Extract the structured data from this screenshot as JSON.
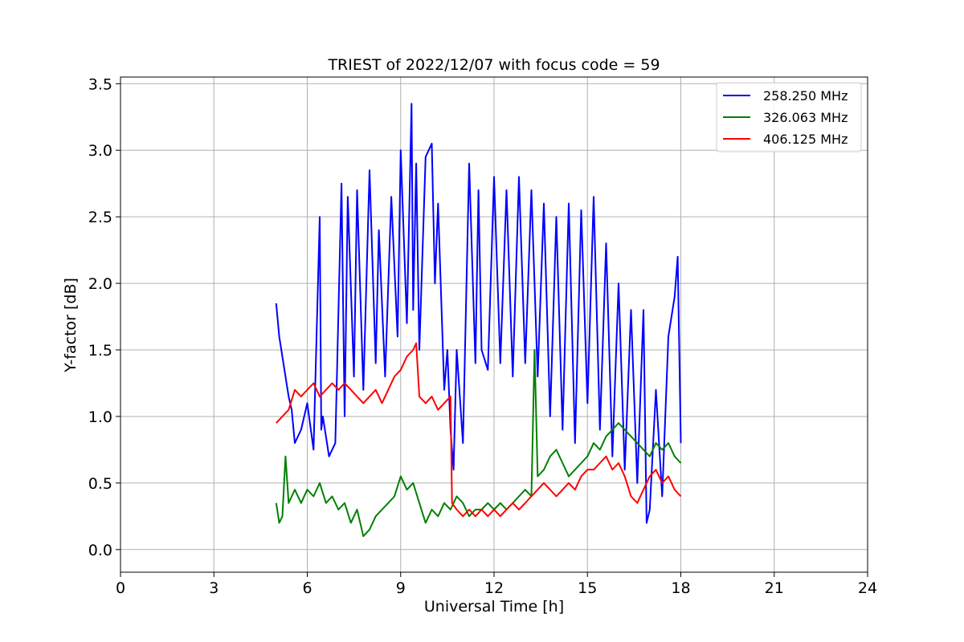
{
  "chart_data": {
    "type": "line",
    "title": "TRIEST of 2022/12/07 with focus code = 59",
    "xlabel": "Universal Time [h]",
    "ylabel": "Y-factor [dB]",
    "xlim": [
      0,
      24
    ],
    "ylim": [
      -0.17,
      3.55
    ],
    "xticks": [
      0,
      3,
      6,
      9,
      12,
      15,
      18,
      21,
      24
    ],
    "yticks": [
      0.0,
      0.5,
      1.0,
      1.5,
      2.0,
      2.5,
      3.0,
      3.5
    ],
    "xtick_labels": [
      "0",
      "3",
      "6",
      "9",
      "12",
      "15",
      "18",
      "21",
      "24"
    ],
    "ytick_labels": [
      "0.0",
      "0.5",
      "1.0",
      "1.5",
      "2.0",
      "2.5",
      "3.0",
      "3.5"
    ],
    "grid": true,
    "legend_position": "top-right",
    "series": [
      {
        "name": "258.250 MHz",
        "color": "#0000ff",
        "x": [
          5.0,
          5.1,
          5.2,
          5.3,
          5.4,
          5.5,
          5.6,
          5.8,
          6.0,
          6.2,
          6.4,
          6.45,
          6.5,
          6.7,
          6.9,
          7.1,
          7.2,
          7.3,
          7.5,
          7.6,
          7.8,
          8.0,
          8.2,
          8.3,
          8.5,
          8.7,
          8.9,
          9.0,
          9.2,
          9.35,
          9.4,
          9.5,
          9.6,
          9.8,
          10.0,
          10.1,
          10.2,
          10.4,
          10.5,
          10.6,
          10.7,
          10.8,
          11.0,
          11.2,
          11.4,
          11.5,
          11.6,
          11.8,
          12.0,
          12.2,
          12.4,
          12.6,
          12.8,
          13.0,
          13.2,
          13.4,
          13.6,
          13.8,
          14.0,
          14.2,
          14.4,
          14.6,
          14.8,
          15.0,
          15.2,
          15.4,
          15.6,
          15.8,
          16.0,
          16.2,
          16.4,
          16.6,
          16.8,
          16.9,
          17.0,
          17.2,
          17.4,
          17.6,
          17.8,
          17.9,
          18.0
        ],
        "y": [
          1.85,
          1.6,
          1.45,
          1.3,
          1.15,
          1.05,
          0.8,
          0.9,
          1.1,
          0.75,
          2.5,
          0.9,
          1.0,
          0.7,
          0.8,
          2.75,
          1.0,
          2.65,
          1.3,
          2.7,
          1.2,
          2.85,
          1.4,
          2.4,
          1.3,
          2.65,
          1.6,
          3.0,
          1.7,
          3.35,
          1.8,
          2.9,
          1.5,
          2.95,
          3.05,
          2.0,
          2.6,
          1.2,
          1.5,
          0.9,
          0.6,
          1.5,
          0.8,
          2.9,
          1.4,
          2.7,
          1.5,
          1.35,
          2.8,
          1.4,
          2.7,
          1.3,
          2.8,
          1.4,
          2.7,
          1.3,
          2.6,
          1.0,
          2.5,
          0.9,
          2.6,
          0.8,
          2.55,
          1.1,
          2.65,
          0.9,
          2.3,
          0.7,
          2.0,
          0.6,
          1.8,
          0.5,
          1.8,
          0.2,
          0.3,
          1.2,
          0.4,
          1.6,
          1.9,
          2.2,
          0.8
        ]
      },
      {
        "name": "326.063 MHz",
        "color": "#008000",
        "x": [
          5.0,
          5.1,
          5.2,
          5.3,
          5.4,
          5.6,
          5.8,
          6.0,
          6.2,
          6.4,
          6.6,
          6.8,
          7.0,
          7.2,
          7.4,
          7.6,
          7.8,
          8.0,
          8.2,
          8.4,
          8.6,
          8.8,
          9.0,
          9.2,
          9.4,
          9.6,
          9.8,
          10.0,
          10.2,
          10.4,
          10.6,
          10.8,
          11.0,
          11.2,
          11.4,
          11.6,
          11.8,
          12.0,
          12.2,
          12.4,
          12.6,
          12.8,
          13.0,
          13.2,
          13.3,
          13.4,
          13.6,
          13.8,
          14.0,
          14.2,
          14.4,
          14.6,
          14.8,
          15.0,
          15.2,
          15.4,
          15.6,
          15.8,
          16.0,
          16.2,
          16.4,
          16.6,
          16.8,
          17.0,
          17.2,
          17.4,
          17.6,
          17.8,
          18.0
        ],
        "y": [
          0.35,
          0.2,
          0.25,
          0.7,
          0.35,
          0.45,
          0.35,
          0.45,
          0.4,
          0.5,
          0.35,
          0.4,
          0.3,
          0.35,
          0.2,
          0.3,
          0.1,
          0.15,
          0.25,
          0.3,
          0.35,
          0.4,
          0.55,
          0.45,
          0.5,
          0.35,
          0.2,
          0.3,
          0.25,
          0.35,
          0.3,
          0.4,
          0.35,
          0.25,
          0.3,
          0.3,
          0.35,
          0.3,
          0.35,
          0.3,
          0.35,
          0.4,
          0.45,
          0.4,
          1.5,
          0.55,
          0.6,
          0.7,
          0.75,
          0.65,
          0.55,
          0.6,
          0.65,
          0.7,
          0.8,
          0.75,
          0.85,
          0.9,
          0.95,
          0.9,
          0.85,
          0.8,
          0.75,
          0.7,
          0.8,
          0.75,
          0.8,
          0.7,
          0.65
        ]
      },
      {
        "name": "406.125 MHz",
        "color": "#ff0000",
        "x": [
          5.0,
          5.2,
          5.4,
          5.6,
          5.8,
          6.0,
          6.2,
          6.4,
          6.6,
          6.8,
          7.0,
          7.2,
          7.4,
          7.6,
          7.8,
          8.0,
          8.2,
          8.4,
          8.6,
          8.8,
          9.0,
          9.2,
          9.4,
          9.5,
          9.6,
          9.8,
          10.0,
          10.2,
          10.4,
          10.6,
          10.65,
          10.8,
          11.0,
          11.2,
          11.4,
          11.6,
          11.8,
          12.0,
          12.2,
          12.4,
          12.6,
          12.8,
          13.0,
          13.2,
          13.4,
          13.6,
          13.8,
          14.0,
          14.2,
          14.4,
          14.6,
          14.8,
          15.0,
          15.2,
          15.4,
          15.6,
          15.8,
          16.0,
          16.2,
          16.4,
          16.6,
          16.8,
          17.0,
          17.2,
          17.4,
          17.6,
          17.8,
          18.0
        ],
        "y": [
          0.95,
          1.0,
          1.05,
          1.2,
          1.15,
          1.2,
          1.25,
          1.15,
          1.2,
          1.25,
          1.2,
          1.25,
          1.2,
          1.15,
          1.1,
          1.15,
          1.2,
          1.1,
          1.2,
          1.3,
          1.35,
          1.45,
          1.5,
          1.55,
          1.15,
          1.1,
          1.15,
          1.05,
          1.1,
          1.15,
          0.35,
          0.3,
          0.25,
          0.3,
          0.25,
          0.3,
          0.25,
          0.3,
          0.25,
          0.3,
          0.35,
          0.3,
          0.35,
          0.4,
          0.45,
          0.5,
          0.45,
          0.4,
          0.45,
          0.5,
          0.45,
          0.55,
          0.6,
          0.6,
          0.65,
          0.7,
          0.6,
          0.65,
          0.55,
          0.4,
          0.35,
          0.45,
          0.55,
          0.6,
          0.5,
          0.55,
          0.45,
          0.4
        ]
      }
    ]
  }
}
